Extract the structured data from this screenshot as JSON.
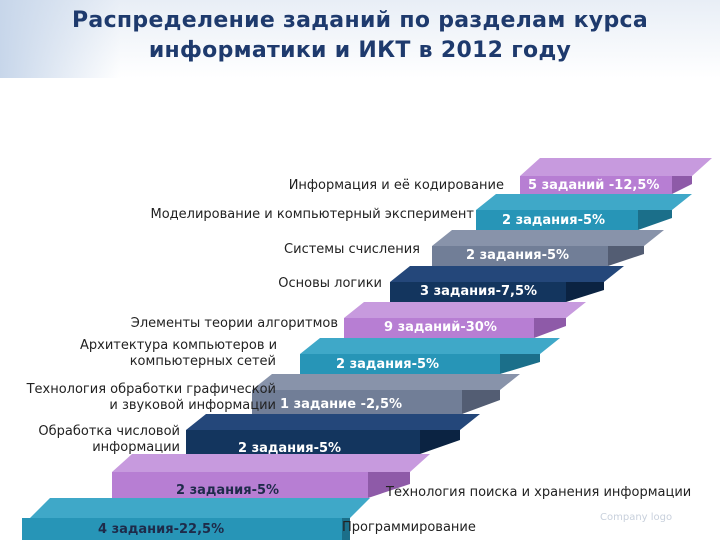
{
  "title_line1": "Распределение заданий по разделам курса",
  "title_line2": "информатики и ИКТ в 2012 году",
  "logo": "Company logo",
  "colors": {
    "purple": "#b77ed3",
    "teal": "#2795b7",
    "grey": "#717e97",
    "navy": "#13355e",
    "accent": "#1e3a6d"
  },
  "sections": [
    {
      "label": "Информация и её кодирование",
      "count": "5 заданий -12,5%",
      "color": "purple"
    },
    {
      "label": "Моделирование и компьютерный эксперимент",
      "count": "2 задания-5%",
      "color": "teal"
    },
    {
      "label": "Системы счисления",
      "count": "2 задания-5%",
      "color": "grey"
    },
    {
      "label": "Основы логики",
      "count": "3 задания-7,5%",
      "color": "navy"
    },
    {
      "label": "Элементы теории алгоритмов",
      "count": "9 заданий-30%",
      "color": "purple"
    },
    {
      "label_lines": [
        "Архитектура компьютеров и",
        "компьютерных сетей"
      ],
      "count": "2 задания-5%",
      "color": "teal"
    },
    {
      "label_lines": [
        "Технология обработки графической",
        "и звуковой информации"
      ],
      "count": "1 задание -2,5%",
      "color": "grey"
    },
    {
      "label_lines": [
        "Обработка числовой",
        "информации"
      ],
      "count": "2 задания-5%",
      "color": "navy"
    },
    {
      "label": "Технология поиска и хранения информации",
      "count": "2 задания-5%",
      "color": "purple"
    },
    {
      "label": "Программирование",
      "count": "4 задания-22,5%",
      "color": "teal"
    }
  ]
}
